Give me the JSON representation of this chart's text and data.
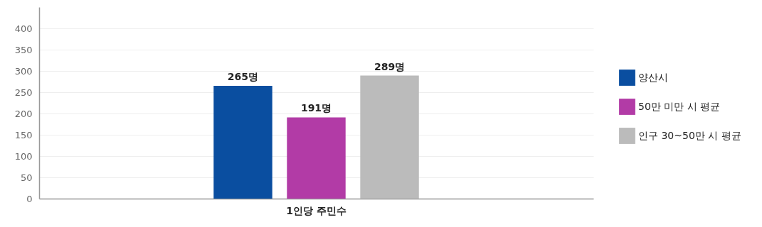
{
  "chart_data": {
    "type": "bar",
    "categories": [
      "1인당 주민수"
    ],
    "series": [
      {
        "name": "양산시",
        "color": "#0a4ea0",
        "values": [
          265
        ],
        "value_labels": [
          "265명"
        ]
      },
      {
        "name": "50만 미만 시 평균",
        "color": "#b23ba6",
        "values": [
          191
        ],
        "value_labels": [
          "191명"
        ]
      },
      {
        "name": "인구 30~50만 시 평균",
        "color": "#bbbbbb",
        "values": [
          289
        ],
        "value_labels": [
          "289명"
        ]
      }
    ],
    "ylim": [
      0,
      450
    ],
    "yticks": [
      0,
      50,
      100,
      150,
      200,
      250,
      300,
      350,
      400
    ],
    "grid": "y",
    "legend": "right"
  }
}
